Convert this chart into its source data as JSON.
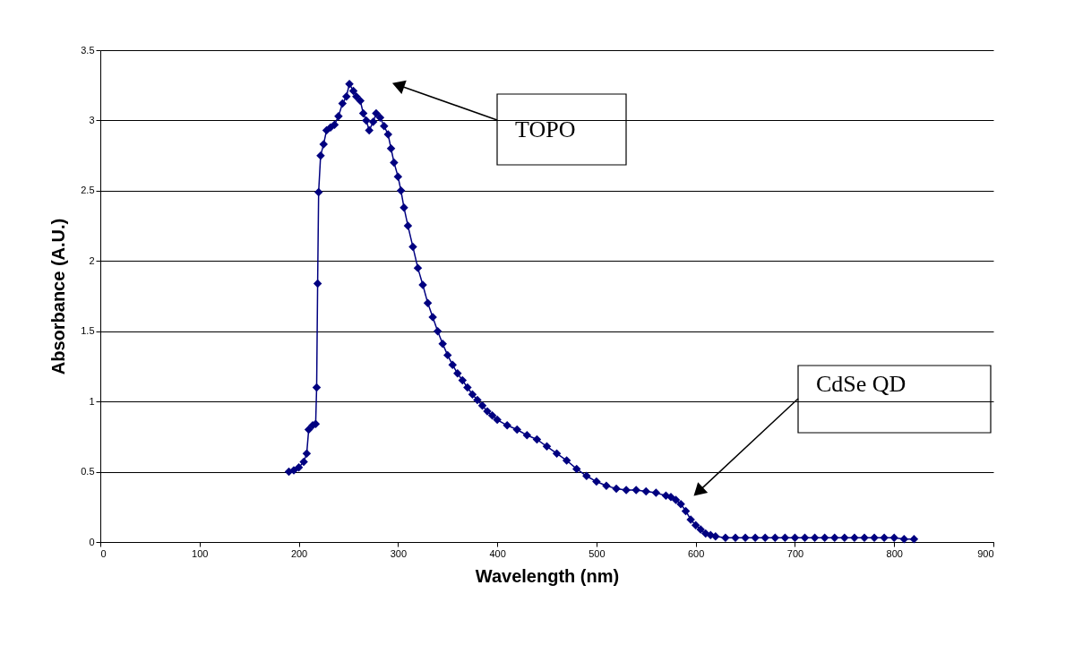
{
  "chart_data": {
    "type": "line",
    "xlabel": "Wavelength (nm)",
    "ylabel": "Absorbance (A.U.)",
    "xlim": [
      0,
      900
    ],
    "xticks": [
      0,
      100,
      200,
      300,
      400,
      500,
      600,
      700,
      800,
      900
    ],
    "ylim": [
      0,
      3.5
    ],
    "yticks": [
      0,
      0.5,
      1,
      1.5,
      2,
      2.5,
      3,
      3.5
    ],
    "grid": "y",
    "marker": "diamond",
    "line_style": "solid",
    "legend": false,
    "series": [
      {
        "color": "#000080",
        "x": [
          190,
          195,
          200,
          205,
          208,
          210,
          214,
          217,
          218,
          219,
          220,
          222,
          225,
          228,
          232,
          236,
          240,
          244,
          248,
          251,
          255,
          258,
          262,
          265,
          268,
          271,
          275,
          278,
          282,
          286,
          290,
          293,
          296,
          300,
          303,
          306,
          310,
          315,
          320,
          325,
          330,
          335,
          340,
          345,
          350,
          355,
          360,
          365,
          370,
          375,
          380,
          385,
          390,
          395,
          400,
          410,
          420,
          430,
          440,
          450,
          460,
          470,
          480,
          490,
          500,
          510,
          520,
          530,
          540,
          550,
          560,
          570,
          575,
          580,
          585,
          590,
          595,
          600,
          605,
          610,
          615,
          620,
          630,
          640,
          650,
          660,
          670,
          680,
          690,
          700,
          710,
          720,
          730,
          740,
          750,
          760,
          770,
          780,
          790,
          800,
          810,
          820
        ],
        "values": [
          0.5,
          0.51,
          0.53,
          0.57,
          0.63,
          0.8,
          0.83,
          0.84,
          1.1,
          1.84,
          2.49,
          2.75,
          2.83,
          2.93,
          2.95,
          2.97,
          3.03,
          3.12,
          3.17,
          3.26,
          3.21,
          3.17,
          3.14,
          3.05,
          3.0,
          2.93,
          2.99,
          3.05,
          3.02,
          2.96,
          2.9,
          2.8,
          2.7,
          2.6,
          2.5,
          2.38,
          2.25,
          2.1,
          1.95,
          1.83,
          1.7,
          1.6,
          1.5,
          1.41,
          1.33,
          1.26,
          1.2,
          1.15,
          1.1,
          1.05,
          1.01,
          0.97,
          0.93,
          0.9,
          0.87,
          0.83,
          0.8,
          0.76,
          0.73,
          0.68,
          0.63,
          0.58,
          0.52,
          0.47,
          0.43,
          0.4,
          0.38,
          0.37,
          0.37,
          0.36,
          0.35,
          0.33,
          0.32,
          0.3,
          0.27,
          0.22,
          0.16,
          0.12,
          0.09,
          0.06,
          0.05,
          0.04,
          0.03,
          0.03,
          0.03,
          0.03,
          0.03,
          0.03,
          0.03,
          0.03,
          0.03,
          0.03,
          0.03,
          0.03,
          0.03,
          0.03,
          0.03,
          0.03,
          0.03,
          0.03,
          0.02,
          0.02
        ]
      }
    ],
    "annotations": [
      "TOPO",
      "CdSe QD"
    ]
  }
}
